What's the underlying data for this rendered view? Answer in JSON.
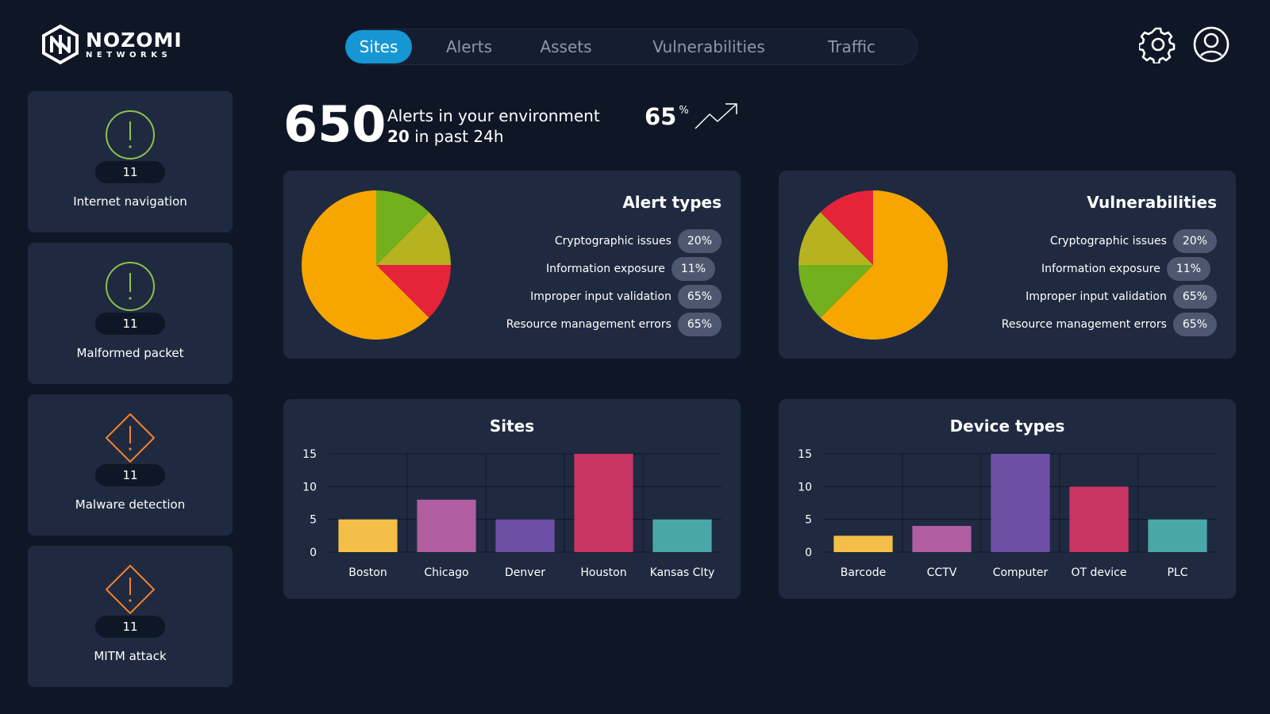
{
  "brand": {
    "name": "NOZOMI",
    "sub": "NETWORKS"
  },
  "tabs": [
    {
      "label": "Sites",
      "active": true
    },
    {
      "label": "Alerts",
      "active": false
    },
    {
      "label": "Assets",
      "active": false
    },
    {
      "label": "Vulnerabilities",
      "active": false
    },
    {
      "label": "Traffic",
      "active": false
    }
  ],
  "header_icons": [
    "gear-icon",
    "user-icon"
  ],
  "sidebar": [
    {
      "count": "11",
      "label": "Internet navigation",
      "icon": "alert-circle-icon",
      "color": "#8bc34a"
    },
    {
      "count": "11",
      "label": "Malformed packet",
      "icon": "alert-circle-icon",
      "color": "#8bc34a"
    },
    {
      "count": "11",
      "label": "Malware detection",
      "icon": "alert-diamond-icon",
      "color": "#f5812b"
    },
    {
      "count": "11",
      "label": "MITM attack",
      "icon": "alert-diamond-icon",
      "color": "#f5812b"
    }
  ],
  "kpi": {
    "total": "650",
    "line1": "Alerts in your environment",
    "recent_count": "20",
    "recent_text": "in past 24h",
    "trend_value": "65",
    "trend_unit": "%"
  },
  "colors": {
    "orange": "#f7a600",
    "green": "#72b01d",
    "olive": "#b7b320",
    "red": "#e52339",
    "yellow": "#f3bf48",
    "pink": "#b05ea0",
    "purple": "#6e4fa6",
    "crimson": "#c83463",
    "teal": "#49a8a6"
  },
  "alert_types": {
    "title": "Alert types",
    "legend": [
      {
        "label": "Cryptographic issues",
        "value": "20%"
      },
      {
        "label": "Information exposure",
        "value": "11%"
      },
      {
        "label": "Improper input validation",
        "value": "65%"
      },
      {
        "label": "Resource management errors",
        "value": "65%"
      }
    ]
  },
  "vulnerabilities": {
    "title": "Vulnerabilities",
    "legend": [
      {
        "label": "Cryptographic issues",
        "value": "20%"
      },
      {
        "label": "Information exposure",
        "value": "11%"
      },
      {
        "label": "Improper input validation",
        "value": "65%"
      },
      {
        "label": "Resource management errors",
        "value": "65%"
      }
    ]
  },
  "chart_data": [
    {
      "type": "pie",
      "title": "Alert types",
      "slices": [
        {
          "value": 12.5,
          "color": "#72b01d"
        },
        {
          "value": 12.5,
          "color": "#b7b320"
        },
        {
          "value": 12.5,
          "color": "#e52339"
        },
        {
          "value": 62.5,
          "color": "#f7a600"
        }
      ]
    },
    {
      "type": "pie",
      "title": "Vulnerabilities",
      "slices": [
        {
          "value": 62.5,
          "color": "#f7a600"
        },
        {
          "value": 12.5,
          "color": "#72b01d"
        },
        {
          "value": 12.5,
          "color": "#b7b320"
        },
        {
          "value": 12.5,
          "color": "#e52339"
        }
      ]
    },
    {
      "type": "bar",
      "title": "Sites",
      "categories": [
        "Boston",
        "Chicago",
        "Denver",
        "Houston",
        "Kansas CIty"
      ],
      "values": [
        5,
        8,
        5,
        15,
        5
      ],
      "colors": [
        "#f3bf48",
        "#b05ea0",
        "#6e4fa6",
        "#c83463",
        "#49a8a6"
      ],
      "yticks": [
        "0",
        "5",
        "10",
        "15"
      ],
      "ylim": [
        0,
        15
      ],
      "grid": true
    },
    {
      "type": "bar",
      "title": "Device types",
      "categories": [
        "Barcode",
        "CCTV",
        "Computer",
        "OT device",
        "PLC"
      ],
      "values": [
        2.5,
        4,
        15,
        10,
        5
      ],
      "colors": [
        "#f3bf48",
        "#b05ea0",
        "#6e4fa6",
        "#c83463",
        "#49a8a6"
      ],
      "yticks": [
        "0",
        "5",
        "10",
        "15"
      ],
      "ylim": [
        0,
        15
      ],
      "grid": true
    }
  ]
}
